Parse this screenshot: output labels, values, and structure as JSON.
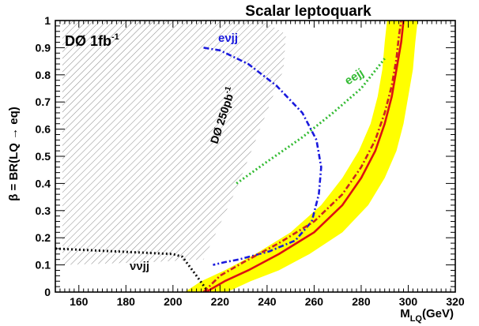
{
  "chart_data": {
    "type": "line",
    "title": "Scalar leptoquark",
    "xlabel": "M",
    "xlabel_sub": "LQ",
    "xlabel_unit": "(GeV)",
    "ylabel": "β = BR(LQ → eq)",
    "xlim": [
      150,
      320
    ],
    "ylim": [
      0,
      1
    ],
    "xticks": [
      160,
      180,
      200,
      220,
      240,
      260,
      280,
      300,
      320
    ],
    "xtick_labels": [
      "160",
      "180",
      "200",
      "220",
      "240",
      "260",
      "280",
      "300",
      "320"
    ],
    "yticks": [
      0.1,
      0.2,
      0.3,
      0.4,
      0.5,
      0.6,
      0.7,
      0.8,
      0.9,
      1
    ],
    "ytick_labels": [
      "0.1",
      "0.2",
      "0.3",
      "0.4",
      "0.5",
      "0.6",
      "0.7",
      "0.8",
      "0.9",
      "1"
    ],
    "grid": false,
    "annotations": {
      "experiment": "DØ 1fb",
      "experiment_sup": "-1",
      "excluded_region": "DØ  250pb",
      "excluded_region_sup": "-1",
      "label_enujj": "eνjj",
      "label_eejj": "eejj",
      "label_nunujj": "ννjj"
    },
    "series": [
      {
        "name": "eejj",
        "style": "dotted",
        "color": "#33bb33",
        "x": [
          227,
          240,
          255,
          268,
          280,
          290
        ],
        "y": [
          0.4,
          0.48,
          0.57,
          0.66,
          0.75,
          0.86
        ]
      },
      {
        "name": "eνjj",
        "style": "dash-dot",
        "color": "#1a1add",
        "x": [
          213,
          220,
          232,
          244,
          255,
          261,
          263,
          262,
          259,
          252,
          241,
          228,
          222,
          217
        ],
        "y": [
          0.9,
          0.89,
          0.84,
          0.76,
          0.66,
          0.56,
          0.46,
          0.36,
          0.26,
          0.19,
          0.15,
          0.12,
          0.11,
          0.1
        ]
      },
      {
        "name": "ννjj",
        "style": "dotted",
        "color": "#111111",
        "x": [
          150,
          175,
          200,
          204,
          210,
          215
        ],
        "y": [
          0.16,
          0.15,
          0.14,
          0.13,
          0.06,
          0.0
        ]
      },
      {
        "name": "",
        "style": "dash-dot",
        "color": "#cc2222",
        "x": [
          213,
          220,
          230,
          245,
          260,
          272,
          280,
          286,
          290,
          293,
          295,
          296,
          297
        ],
        "y": [
          0.0,
          0.06,
          0.11,
          0.18,
          0.26,
          0.36,
          0.46,
          0.56,
          0.66,
          0.76,
          0.86,
          0.94,
          1.0
        ]
      },
      {
        "name": "",
        "style": "solid",
        "color": "#dd1111",
        "x": [
          214,
          222,
          232,
          245,
          260,
          272,
          280,
          286,
          290,
          293,
          295,
          297,
          298
        ],
        "y": [
          0.0,
          0.04,
          0.08,
          0.14,
          0.22,
          0.32,
          0.42,
          0.52,
          0.62,
          0.72,
          0.82,
          0.92,
          1.0
        ]
      }
    ],
    "band": {
      "color": "#ffff00",
      "x_low": [
        205,
        212,
        222,
        235,
        250,
        263,
        272,
        279,
        284,
        287,
        289,
        290,
        291
      ],
      "x_high": [
        223,
        233,
        245,
        258,
        272,
        283,
        290,
        295,
        298,
        300,
        302,
        303,
        304
      ],
      "y": [
        0.0,
        0.04,
        0.08,
        0.14,
        0.22,
        0.32,
        0.42,
        0.52,
        0.62,
        0.72,
        0.82,
        0.92,
        1.0
      ]
    },
    "excluded_polygon": {
      "x": [
        153,
        190,
        213,
        227,
        247,
        248,
        238,
        230,
        222,
        213,
        153
      ],
      "y": [
        0.1,
        0.11,
        0.12,
        0.38,
        0.82,
        0.95,
        1.0,
        1.0,
        1.0,
        1.0,
        1.0
      ]
    }
  }
}
